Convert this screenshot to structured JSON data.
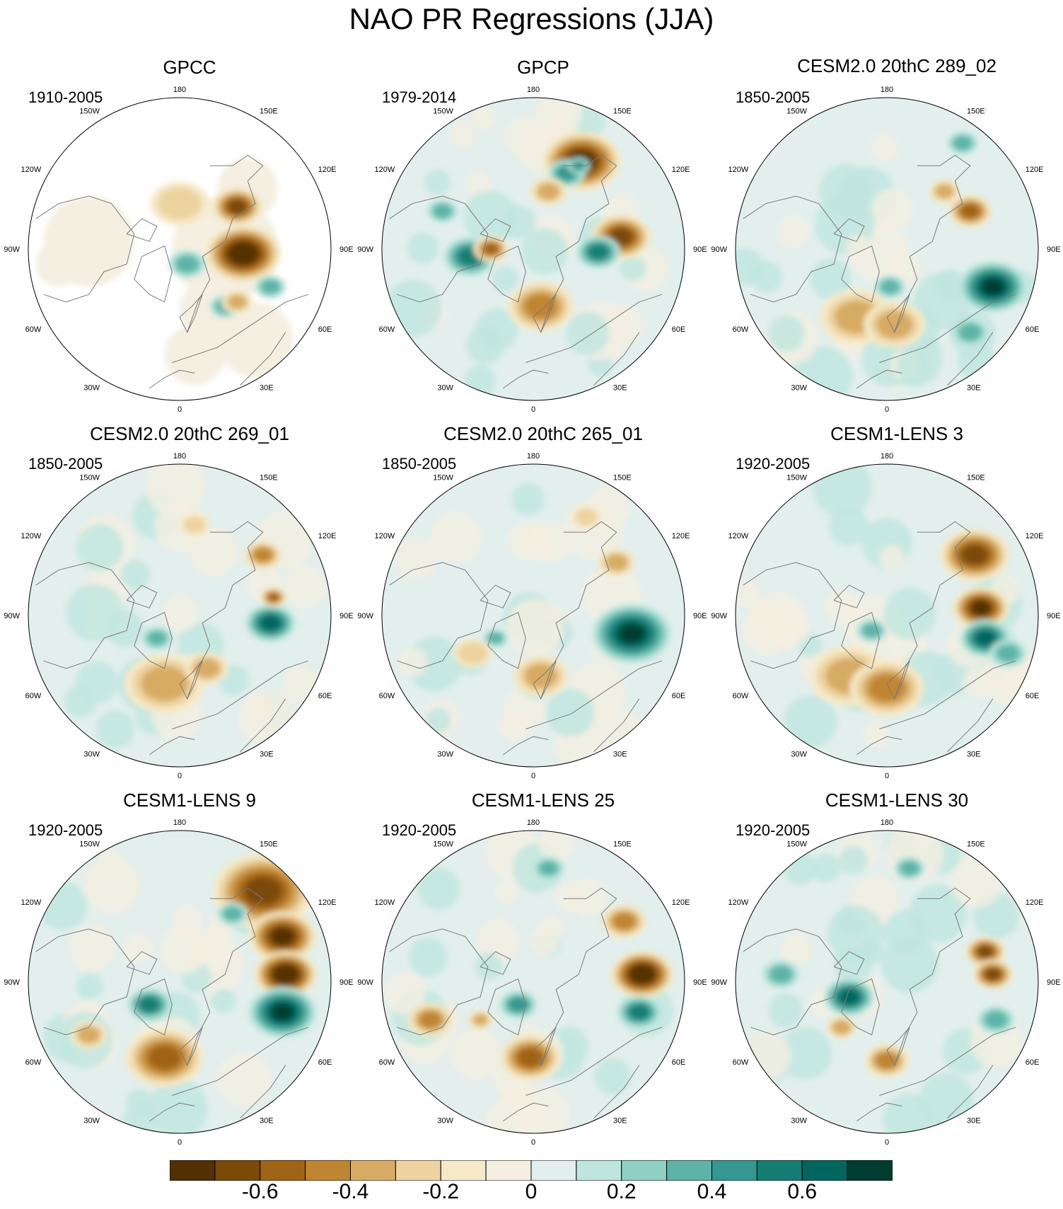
{
  "title": "NAO PR Regressions (JJA)",
  "longitude_labels": [
    "180",
    "150E",
    "120E",
    "90E",
    "60E",
    "30E",
    "0",
    "30W",
    "60W",
    "90W",
    "120W",
    "150W"
  ],
  "panels": [
    {
      "title": "GPCC",
      "period": "1910-2005",
      "land_only": true,
      "blobs": [
        [
          0.42,
          -0.03,
          0.06,
          -0.75
        ],
        [
          0.38,
          0.28,
          0.05,
          -0.55
        ],
        [
          0.3,
          -0.38,
          0.05,
          0.35
        ],
        [
          0.38,
          -0.35,
          0.05,
          -0.3
        ],
        [
          0.0,
          0.3,
          0.12,
          -0.2
        ],
        [
          0.05,
          -0.1,
          0.06,
          0.3
        ],
        [
          0.6,
          -0.25,
          0.05,
          0.3
        ]
      ]
    },
    {
      "title": "GPCP",
      "period": "1979-2014",
      "land_only": false,
      "blobs": [
        [
          0.32,
          0.58,
          0.07,
          -0.7
        ],
        [
          0.58,
          0.08,
          0.06,
          -0.6
        ],
        [
          0.22,
          0.5,
          0.05,
          0.4
        ],
        [
          0.43,
          -0.02,
          0.05,
          0.5
        ],
        [
          -0.42,
          -0.05,
          0.06,
          0.5
        ],
        [
          -0.28,
          0.0,
          0.04,
          -0.5
        ],
        [
          0.1,
          0.38,
          0.06,
          -0.3
        ],
        [
          0.05,
          -0.38,
          0.09,
          -0.4
        ],
        [
          -0.6,
          0.25,
          0.05,
          0.3
        ],
        [
          0.3,
          0.55,
          0.03,
          0.4
        ]
      ]
    },
    {
      "title": "CESM2.0 20thC 289_02",
      "period": "1850-2005",
      "land_only": false,
      "blobs": [
        [
          0.7,
          -0.25,
          0.06,
          0.7
        ],
        [
          0.55,
          0.25,
          0.05,
          -0.5
        ],
        [
          0.38,
          0.38,
          0.05,
          -0.3
        ],
        [
          -0.2,
          -0.45,
          0.12,
          -0.25
        ],
        [
          0.05,
          -0.5,
          0.1,
          -0.3
        ],
        [
          0.02,
          -0.25,
          0.05,
          0.35
        ],
        [
          0.55,
          -0.55,
          0.06,
          0.3
        ],
        [
          0.5,
          0.7,
          0.05,
          0.3
        ]
      ]
    },
    {
      "title": "CESM2.0 20thC 269_01",
      "period": "1850-2005",
      "land_only": false,
      "blobs": [
        [
          0.6,
          -0.05,
          0.05,
          0.6
        ],
        [
          0.62,
          0.12,
          0.03,
          -0.5
        ],
        [
          0.55,
          0.4,
          0.05,
          -0.4
        ],
        [
          -0.1,
          -0.45,
          0.13,
          -0.3
        ],
        [
          0.18,
          -0.35,
          0.07,
          -0.3
        ],
        [
          -0.15,
          -0.15,
          0.05,
          0.3
        ],
        [
          0.1,
          0.6,
          0.06,
          -0.2
        ]
      ]
    },
    {
      "title": "CESM2.0 20thC 265_01",
      "period": "1850-2005",
      "land_only": false,
      "blobs": [
        [
          0.65,
          -0.12,
          0.07,
          0.7
        ],
        [
          0.55,
          0.35,
          0.06,
          -0.35
        ],
        [
          0.05,
          -0.4,
          0.09,
          -0.35
        ],
        [
          -0.4,
          -0.25,
          0.08,
          -0.2
        ],
        [
          -0.25,
          -0.15,
          0.04,
          0.3
        ],
        [
          0.35,
          0.65,
          0.06,
          -0.2
        ]
      ]
    },
    {
      "title": "CESM1-LENS 3",
      "period": "1920-2005",
      "land_only": false,
      "blobs": [
        [
          0.58,
          0.4,
          0.07,
          -0.6
        ],
        [
          0.62,
          0.05,
          0.05,
          -0.7
        ],
        [
          0.65,
          -0.15,
          0.05,
          0.6
        ],
        [
          -0.25,
          -0.4,
          0.13,
          -0.35
        ],
        [
          0.0,
          -0.48,
          0.1,
          -0.4
        ],
        [
          0.8,
          -0.25,
          0.06,
          0.3
        ],
        [
          -0.1,
          -0.1,
          0.05,
          0.3
        ]
      ]
    },
    {
      "title": "CESM1-LENS 9",
      "period": "1920-2005",
      "land_only": false,
      "blobs": [
        [
          0.55,
          0.6,
          0.1,
          -0.55
        ],
        [
          0.68,
          0.3,
          0.06,
          -0.7
        ],
        [
          0.7,
          0.05,
          0.05,
          -0.75
        ],
        [
          0.68,
          -0.2,
          0.06,
          0.7
        ],
        [
          -0.1,
          -0.5,
          0.09,
          -0.45
        ],
        [
          -0.6,
          -0.35,
          0.06,
          -0.3
        ],
        [
          -0.2,
          -0.15,
          0.05,
          0.45
        ],
        [
          0.35,
          0.45,
          0.05,
          0.3
        ]
      ]
    },
    {
      "title": "CESM1-LENS 25",
      "period": "1920-2005",
      "land_only": false,
      "blobs": [
        [
          0.72,
          0.05,
          0.05,
          -0.75
        ],
        [
          0.6,
          0.4,
          0.06,
          -0.4
        ],
        [
          0.7,
          -0.2,
          0.05,
          0.5
        ],
        [
          -0.02,
          -0.5,
          0.07,
          -0.5
        ],
        [
          -0.68,
          -0.25,
          0.06,
          -0.4
        ],
        [
          -0.35,
          -0.25,
          0.04,
          -0.35
        ],
        [
          -0.1,
          -0.15,
          0.05,
          0.4
        ],
        [
          0.1,
          0.75,
          0.05,
          0.3
        ]
      ]
    },
    {
      "title": "CESM1-LENS 30",
      "period": "1920-2005",
      "land_only": false,
      "blobs": [
        [
          0.65,
          0.2,
          0.04,
          -0.6
        ],
        [
          0.7,
          0.05,
          0.04,
          -0.6
        ],
        [
          -0.25,
          -0.1,
          0.05,
          0.55
        ],
        [
          -0.3,
          -0.3,
          0.05,
          -0.35
        ],
        [
          0.0,
          -0.52,
          0.06,
          -0.4
        ],
        [
          -0.7,
          0.05,
          0.06,
          0.3
        ],
        [
          0.72,
          -0.25,
          0.06,
          0.35
        ],
        [
          0.15,
          0.75,
          0.05,
          0.25
        ]
      ]
    }
  ],
  "colorbar": {
    "colors": [
      "#543005",
      "#7b4a09",
      "#a06419",
      "#c08532",
      "#d7ab63",
      "#ecd3a0",
      "#f6e9c8",
      "#f4efe1",
      "#e2efed",
      "#bfe6de",
      "#8ed1c4",
      "#5db3a8",
      "#35978f",
      "#157d72",
      "#01665e",
      "#003c30"
    ],
    "levels": [
      -0.7,
      -0.6,
      -0.5,
      -0.4,
      -0.3,
      -0.2,
      -0.1,
      0,
      0.1,
      0.2,
      0.3,
      0.4,
      0.5,
      0.6,
      0.7
    ],
    "labels": [
      {
        "text": "-0.6",
        "value": -0.6
      },
      {
        "text": "-0.4",
        "value": -0.4
      },
      {
        "text": "-0.2",
        "value": -0.2
      },
      {
        "text": "0",
        "value": 0
      },
      {
        "text": "0.2",
        "value": 0.2
      },
      {
        "text": "0.4",
        "value": 0.4
      },
      {
        "text": "0.6",
        "value": 0.6
      }
    ]
  }
}
